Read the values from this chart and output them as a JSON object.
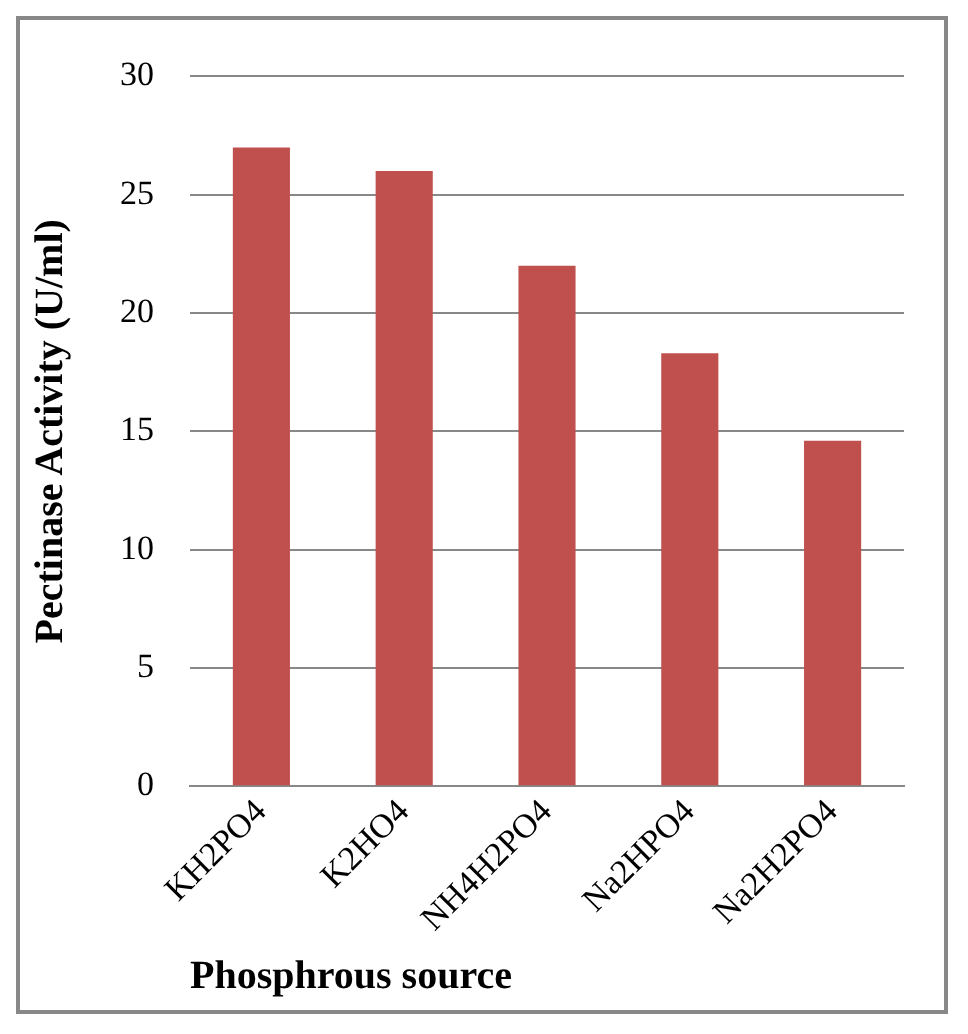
{
  "chart_data": {
    "type": "bar",
    "xlabel": "Phosphrous source",
    "ylabel": "Pectinase Activity (U/ml)",
    "categories": [
      "KH2PO4",
      "K2HO4",
      "NH4H2PO4",
      "Na2HPO4",
      "Na2H2PO4"
    ],
    "values": [
      27,
      26,
      22,
      18.3,
      14.6
    ],
    "color": "#c0504d",
    "ylim": [
      0,
      30
    ],
    "yticks": [
      0,
      5,
      10,
      15,
      20,
      25,
      30
    ],
    "grid": "y",
    "legend": false
  }
}
